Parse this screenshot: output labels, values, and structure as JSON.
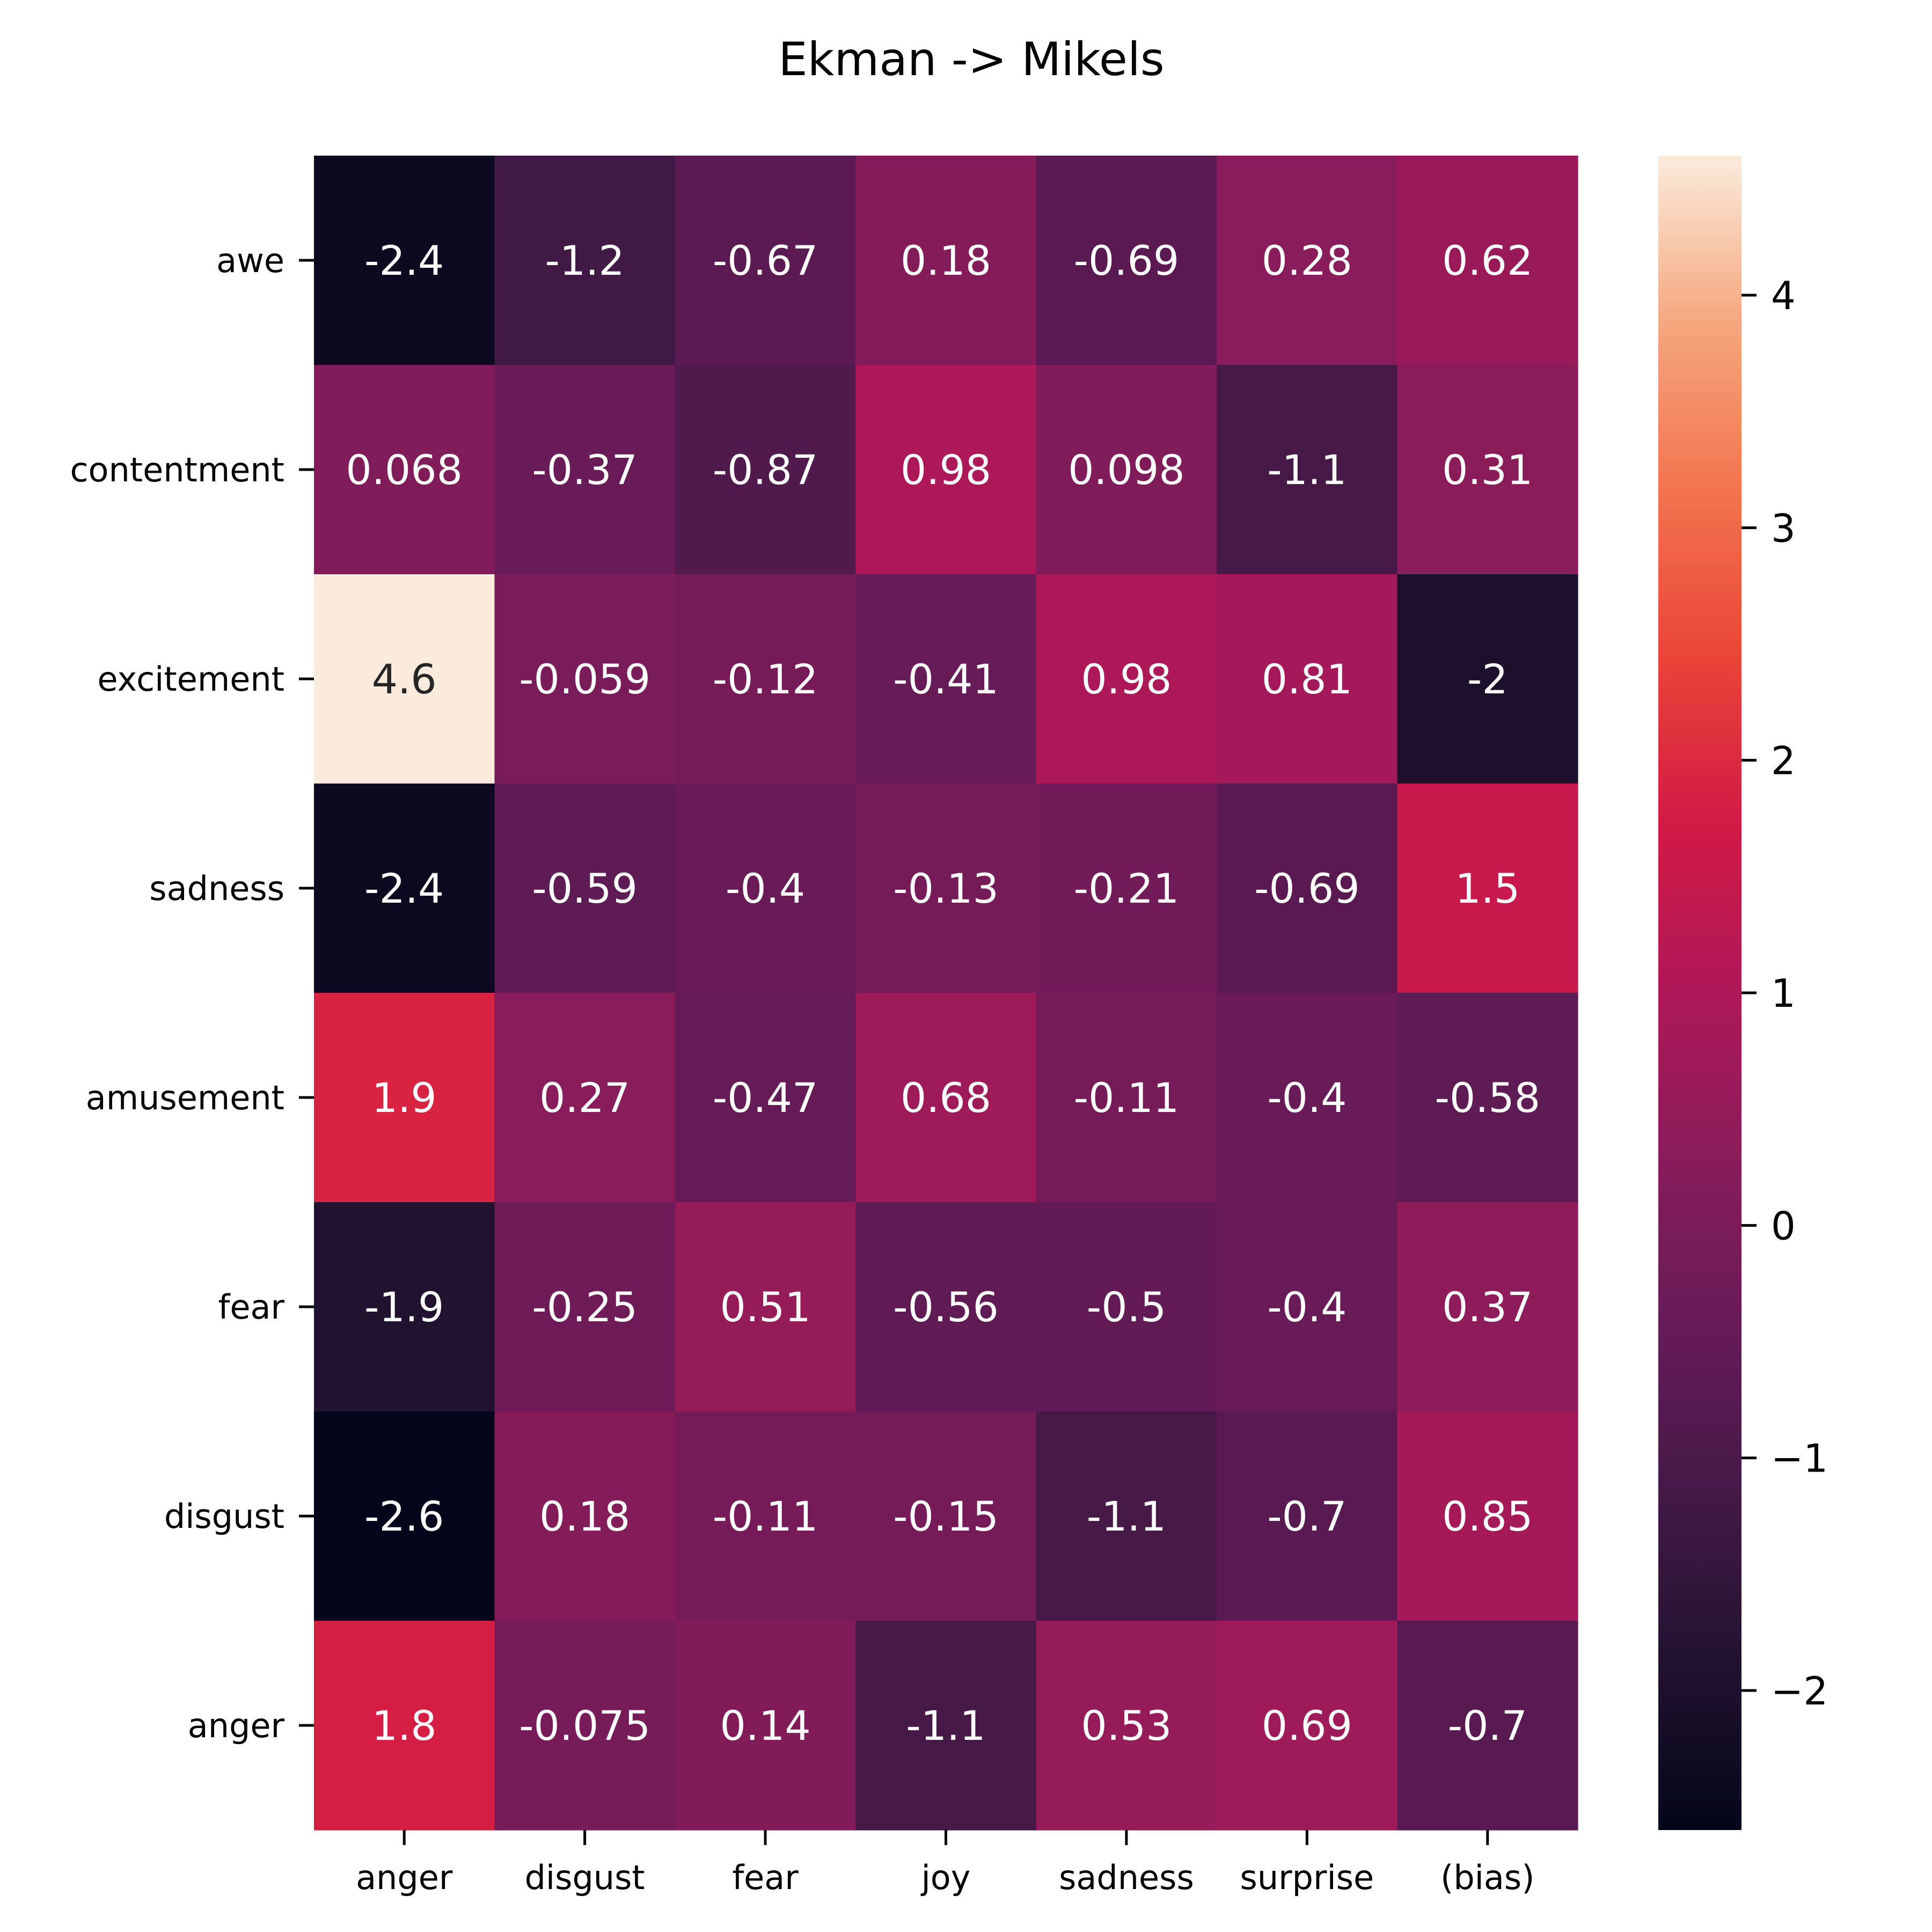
{
  "chart_data": {
    "type": "heatmap",
    "title": "Ekman -> Mikels",
    "xlabel": "",
    "ylabel": "",
    "x_categories": [
      "anger",
      "disgust",
      "fear",
      "joy",
      "sadness",
      "surprise",
      "(bias)"
    ],
    "y_categories": [
      "awe",
      "contentment",
      "excitement",
      "sadness",
      "amusement",
      "fear",
      "disgust",
      "anger"
    ],
    "values": [
      [
        -2.4,
        -1.2,
        -0.67,
        0.18,
        -0.69,
        0.28,
        0.62
      ],
      [
        0.068,
        -0.37,
        -0.87,
        0.98,
        0.098,
        -1.1,
        0.31
      ],
      [
        4.6,
        -0.059,
        -0.12,
        -0.41,
        0.98,
        0.81,
        -2
      ],
      [
        -2.4,
        -0.59,
        -0.4,
        -0.13,
        -0.21,
        -0.69,
        1.5
      ],
      [
        1.9,
        0.27,
        -0.47,
        0.68,
        -0.11,
        -0.4,
        -0.58
      ],
      [
        -1.9,
        -0.25,
        0.51,
        -0.56,
        -0.5,
        -0.4,
        0.37
      ],
      [
        -2.6,
        0.18,
        -0.11,
        -0.15,
        -1.1,
        -0.7,
        0.85
      ],
      [
        1.8,
        -0.075,
        0.14,
        -1.1,
        0.53,
        0.69,
        -0.7
      ]
    ],
    "colormap": "rocket",
    "colorbar": {
      "range": [
        -2.6,
        4.6
      ],
      "ticks": [
        -2,
        -1,
        0,
        1,
        2,
        3,
        4
      ],
      "tick_labels": [
        "−2",
        "−1",
        "0",
        "1",
        "2",
        "3",
        "4"
      ]
    },
    "annotations": true,
    "grid": false
  }
}
